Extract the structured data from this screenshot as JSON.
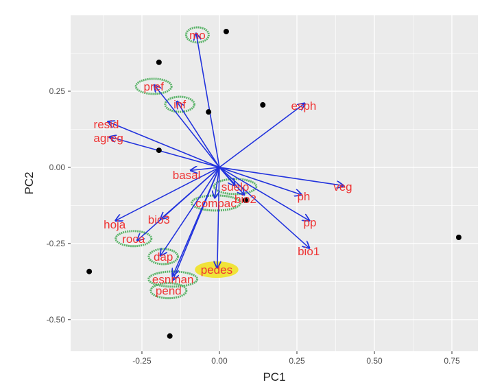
{
  "chart_data": {
    "type": "scatter",
    "subtype": "pca-biplot",
    "xlabel": "PC1",
    "ylabel": "PC2",
    "xlim": [
      -0.48,
      0.834
    ],
    "ylim": [
      -0.604,
      0.5
    ],
    "xticks": [
      -0.25,
      0.0,
      0.25,
      0.5,
      0.75
    ],
    "xtick_labels": [
      "-0.25",
      "0.00",
      "0.25",
      "0.50",
      "0.75"
    ],
    "yticks": [
      -0.5,
      -0.25,
      0.0,
      0.25
    ],
    "ytick_labels": [
      "-0.50",
      "-0.25",
      "0.00",
      "0.25"
    ],
    "grid": true,
    "colors": {
      "panel": "#ebebeb",
      "grid": "#ffffff",
      "arrow": "#2233dd",
      "label": "#ee3333",
      "point": "#000000",
      "green": "#44aa55",
      "yellow": "#f2e21a"
    },
    "points": [
      [
        0.022,
        0.446
      ],
      [
        -0.195,
        0.345
      ],
      [
        0.14,
        0.205
      ],
      [
        -0.035,
        0.182
      ],
      [
        -0.195,
        0.056
      ],
      [
        0.084,
        -0.108
      ],
      [
        0.772,
        -0.23
      ],
      [
        -0.42,
        -0.342
      ],
      [
        -0.16,
        -0.554
      ]
    ],
    "vectors": [
      {
        "name": "mo",
        "x": -0.075,
        "y": 0.44,
        "lx": -0.071,
        "ly": 0.435,
        "highlight": "green"
      },
      {
        "name": "pref",
        "x": -0.21,
        "y": 0.27,
        "lx": -0.212,
        "ly": 0.266,
        "highlight": "green"
      },
      {
        "name": "inf",
        "x": -0.137,
        "y": 0.216,
        "lx": -0.128,
        "ly": 0.207,
        "highlight": "green"
      },
      {
        "name": "resid",
        "x": -0.36,
        "y": 0.15,
        "lx": -0.365,
        "ly": 0.142,
        "highlight": ""
      },
      {
        "name": "agreg",
        "x": -0.355,
        "y": 0.1,
        "lx": -0.358,
        "ly": 0.097,
        "highlight": ""
      },
      {
        "name": "basal",
        "x": -0.093,
        "y": -0.01,
        "lx": -0.106,
        "ly": -0.025,
        "highlight": ""
      },
      {
        "name": "suelo",
        "x": 0.05,
        "y": -0.06,
        "lx": 0.051,
        "ly": -0.063,
        "highlight": "green"
      },
      {
        "name": "compac",
        "x": -0.015,
        "y": -0.1,
        "lx": -0.011,
        "ly": -0.117,
        "highlight": "green"
      },
      {
        "name": "bio2",
        "x": 0.08,
        "y": -0.09,
        "lx": 0.084,
        "ly": -0.104,
        "highlight": ""
      },
      {
        "name": "hoja",
        "x": -0.335,
        "y": -0.175,
        "lx": -0.338,
        "ly": -0.187,
        "highlight": ""
      },
      {
        "name": "bio3",
        "x": -0.19,
        "y": -0.17,
        "lx": -0.195,
        "ly": -0.171,
        "highlight": ""
      },
      {
        "name": "roca",
        "x": -0.265,
        "y": -0.24,
        "lx": -0.277,
        "ly": -0.234,
        "highlight": "green"
      },
      {
        "name": "dap",
        "x": -0.19,
        "y": -0.29,
        "lx": -0.181,
        "ly": -0.293,
        "highlight": "green"
      },
      {
        "name": "esnman",
        "x": -0.15,
        "y": -0.355,
        "lx": -0.15,
        "ly": -0.367,
        "highlight": "green"
      },
      {
        "name": "pend",
        "x": -0.15,
        "y": -0.37,
        "lx": -0.164,
        "ly": -0.405,
        "highlight": "green"
      },
      {
        "name": "pedes",
        "x": -0.007,
        "y": -0.33,
        "lx": -0.009,
        "ly": -0.336,
        "highlight": "yellow"
      },
      {
        "name": "esph",
        "x": 0.275,
        "y": 0.21,
        "lx": 0.272,
        "ly": 0.203,
        "highlight": ""
      },
      {
        "name": "veg",
        "x": 0.4,
        "y": -0.06,
        "lx": 0.398,
        "ly": -0.063,
        "highlight": ""
      },
      {
        "name": "ph",
        "x": 0.265,
        "y": -0.09,
        "lx": 0.272,
        "ly": -0.095,
        "highlight": ""
      },
      {
        "name": "pp",
        "x": 0.29,
        "y": -0.175,
        "lx": 0.292,
        "ly": -0.18,
        "highlight": ""
      },
      {
        "name": "bio1",
        "x": 0.29,
        "y": -0.265,
        "lx": 0.288,
        "ly": -0.275,
        "highlight": ""
      }
    ]
  }
}
